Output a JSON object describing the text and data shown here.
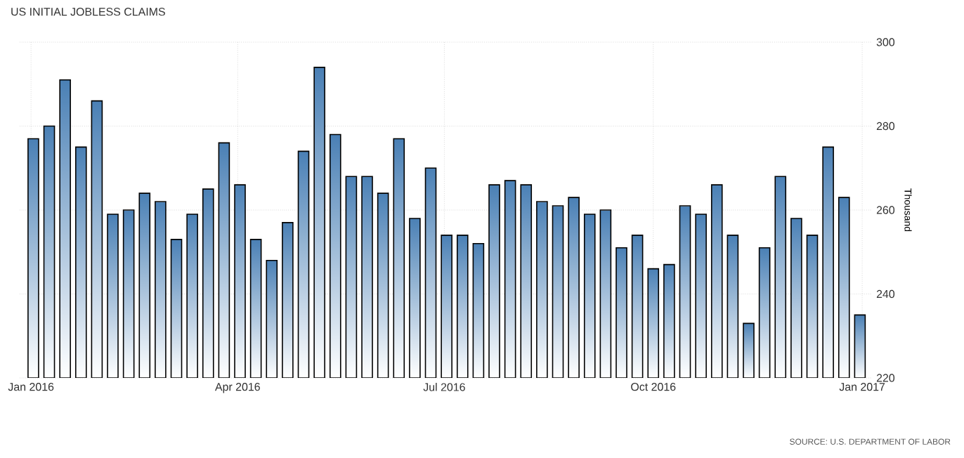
{
  "chart_data": {
    "type": "bar",
    "title": "US INITIAL JOBLESS CLAIMS",
    "ylabel": "Thousand",
    "x": [
      "2016-01-02",
      "2016-01-09",
      "2016-01-16",
      "2016-01-23",
      "2016-01-30",
      "2016-02-06",
      "2016-02-13",
      "2016-02-20",
      "2016-02-27",
      "2016-03-05",
      "2016-03-12",
      "2016-03-19",
      "2016-03-26",
      "2016-04-02",
      "2016-04-09",
      "2016-04-16",
      "2016-04-23",
      "2016-04-30",
      "2016-05-07",
      "2016-05-14",
      "2016-05-21",
      "2016-05-28",
      "2016-06-04",
      "2016-06-11",
      "2016-06-18",
      "2016-06-25",
      "2016-07-02",
      "2016-07-09",
      "2016-07-16",
      "2016-07-23",
      "2016-07-30",
      "2016-08-06",
      "2016-08-13",
      "2016-08-20",
      "2016-08-27",
      "2016-09-03",
      "2016-09-10",
      "2016-09-17",
      "2016-09-24",
      "2016-10-01",
      "2016-10-08",
      "2016-10-15",
      "2016-10-22",
      "2016-10-29",
      "2016-11-05",
      "2016-11-12",
      "2016-11-19",
      "2016-11-26",
      "2016-12-03",
      "2016-12-10",
      "2016-12-17",
      "2016-12-24",
      "2016-12-31"
    ],
    "values": [
      277,
      280,
      291,
      275,
      286,
      259,
      260,
      264,
      262,
      253,
      259,
      265,
      276,
      266,
      253,
      248,
      257,
      274,
      294,
      278,
      268,
      268,
      264,
      277,
      258,
      270,
      254,
      254,
      252,
      266,
      267,
      266,
      262,
      261,
      263,
      259,
      260,
      251,
      254,
      246,
      247,
      261,
      259,
      266,
      254,
      233,
      251,
      268,
      258,
      254,
      275,
      263,
      235
    ],
    "color": "#4a80b5",
    "xlim": [
      "2015-12-27",
      "2017-01-05"
    ],
    "xticks": [
      {
        "value": "2016-01-01",
        "label": "Jan 2016"
      },
      {
        "value": "2016-04-01",
        "label": "Apr 2016"
      },
      {
        "value": "2016-07-01",
        "label": "Jul 2016"
      },
      {
        "value": "2016-10-01",
        "label": "Oct 2016"
      },
      {
        "value": "2017-01-01",
        "label": "Jan 2017"
      }
    ],
    "ylim": [
      220,
      300
    ],
    "yticks": [
      220,
      240,
      260,
      280,
      300
    ],
    "grid": true,
    "annotations": [
      "SOURCE: U.S. DEPARTMENT OF LABOR"
    ]
  }
}
